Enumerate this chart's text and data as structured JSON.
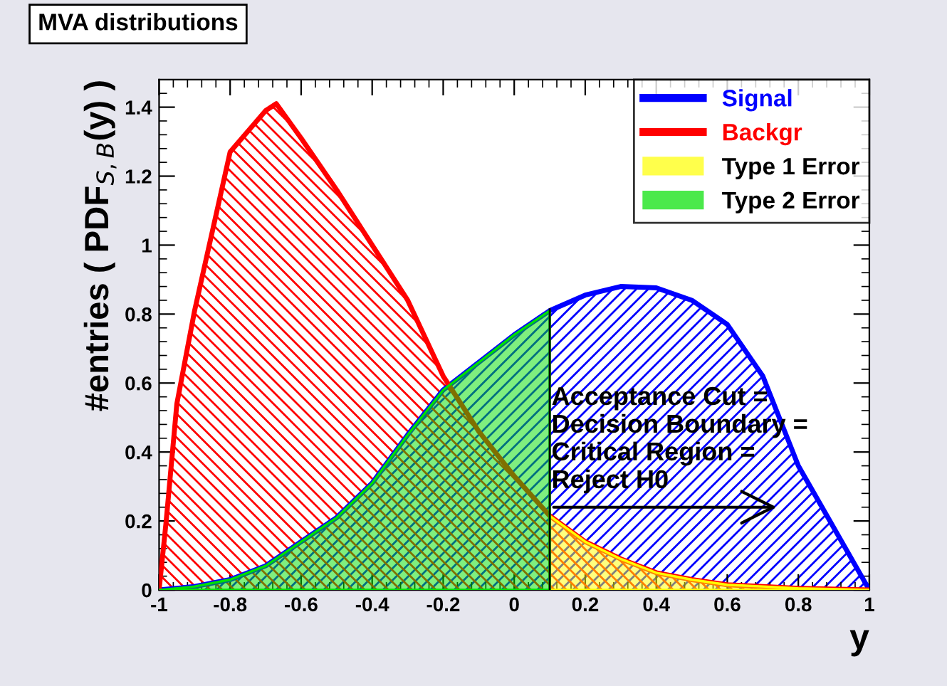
{
  "chart_data": {
    "type": "area",
    "title": "MVA distributions",
    "xlabel": "y",
    "ylabel": "#entries ( PDF$_{S,B}$(y) )",
    "xlim": [
      -1,
      1
    ],
    "ylim": [
      0,
      1.48
    ],
    "xticks": [
      -1,
      -0.8,
      -0.6,
      -0.4,
      -0.2,
      0,
      0.2,
      0.4,
      0.6,
      0.8,
      1
    ],
    "yticks": [
      0,
      0.2,
      0.4,
      0.6,
      0.8,
      1,
      1.2,
      1.4
    ],
    "grid": false,
    "legend": "top right",
    "ref_lines": [
      {
        "axis": "x",
        "value": 0.1,
        "color": "#000000"
      }
    ],
    "annotations": [
      {
        "text": "Acceptance Cut =\nDecision Boundary =\nCritical Region =\nReject H0",
        "x": 0.1,
        "y": 0.24
      }
    ],
    "series": [
      {
        "name": "Signal",
        "color": "#0000ff",
        "x": [
          -1,
          -0.9,
          -0.8,
          -0.7,
          -0.6,
          -0.5,
          -0.4,
          -0.3,
          -0.2,
          -0.1,
          0,
          0.1,
          0.2,
          0.3,
          0.4,
          0.5,
          0.6,
          0.7,
          0.8,
          0.9,
          1
        ],
        "values": [
          0,
          0.01,
          0.03,
          0.07,
          0.14,
          0.21,
          0.31,
          0.45,
          0.58,
          0.66,
          0.74,
          0.81,
          0.855,
          0.88,
          0.876,
          0.84,
          0.77,
          0.62,
          0.36,
          0.18,
          0
        ]
      },
      {
        "name": "Backgr",
        "color": "#ff0000",
        "x": [
          -1,
          -0.98,
          -0.95,
          -0.9,
          -0.8,
          -0.7,
          -0.67,
          -0.6,
          -0.5,
          -0.4,
          -0.3,
          -0.2,
          -0.1,
          0,
          0.1,
          0.2,
          0.3,
          0.4,
          0.5,
          0.6,
          0.7,
          0.8,
          1
        ],
        "values": [
          0,
          0.2,
          0.54,
          0.81,
          1.27,
          1.39,
          1.41,
          1.31,
          1.16,
          1.0,
          0.84,
          0.62,
          0.46,
          0.33,
          0.215,
          0.14,
          0.09,
          0.05,
          0.03,
          0.015,
          0.01,
          0.005,
          0
        ]
      },
      {
        "name": "Type 1 Error",
        "color": "#ffff00",
        "x": [
          0.1,
          0.2,
          0.3,
          0.4,
          0.5,
          0.6,
          0.7,
          0.8,
          1
        ],
        "values": [
          0.215,
          0.14,
          0.09,
          0.05,
          0.03,
          0.015,
          0.01,
          0.005,
          0
        ]
      },
      {
        "name": "Type 2 Error",
        "color": "#00e000",
        "x": [
          -1,
          -0.9,
          -0.8,
          -0.7,
          -0.6,
          -0.5,
          -0.4,
          -0.3,
          -0.2,
          -0.1,
          0,
          0.1
        ],
        "values": [
          0,
          0.01,
          0.03,
          0.07,
          0.14,
          0.21,
          0.31,
          0.45,
          0.58,
          0.66,
          0.74,
          0.81
        ]
      }
    ]
  }
}
